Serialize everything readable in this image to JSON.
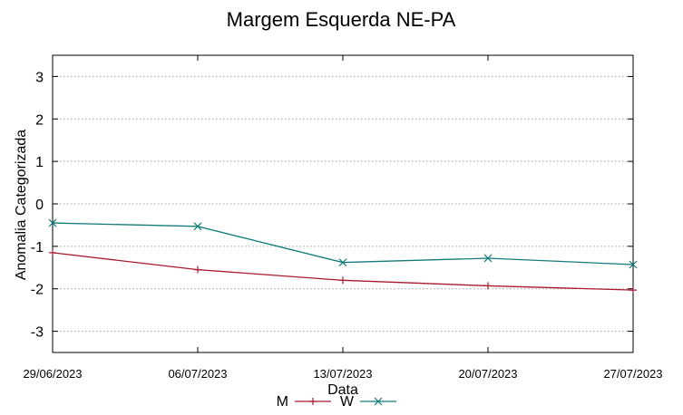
{
  "chart_data": {
    "type": "line",
    "title": "Margem Esquerda NE-PA",
    "xlabel": "Data",
    "ylabel": "Anomalia Categorizada",
    "categories": [
      "29/06/2023",
      "06/07/2023",
      "13/07/2023",
      "20/07/2023",
      "27/07/2023"
    ],
    "ylim": [
      -3.5,
      3.5
    ],
    "yticks": [
      -3,
      -2,
      -1,
      0,
      1,
      2,
      3
    ],
    "grid": true,
    "legend": "bottom-center",
    "series": [
      {
        "name": "M",
        "color": "#a8192e",
        "marker": "plus",
        "values": [
          -1.15,
          -1.55,
          -1.8,
          -1.93,
          -2.03
        ]
      },
      {
        "name": "W",
        "color": "#157a7a",
        "marker": "cross",
        "values": [
          -0.45,
          -0.53,
          -1.38,
          -1.28,
          -1.43
        ]
      }
    ]
  }
}
